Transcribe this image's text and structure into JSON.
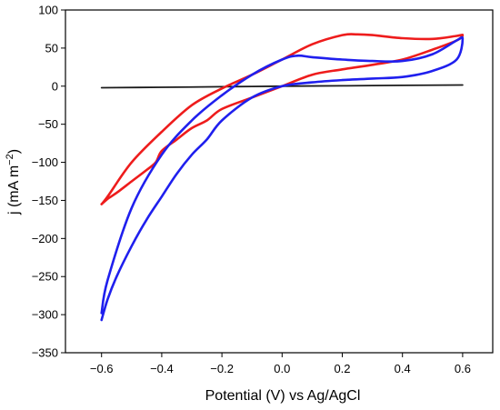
{
  "chart_data": {
    "type": "line",
    "title": "",
    "xlabel": "Potential (V) vs Ag/AgCl",
    "ylabel_main": "j (mA m",
    "ylabel_sup": "−2",
    "ylabel_close": ")",
    "xlim": [
      -0.72,
      0.7
    ],
    "ylim": [
      -350,
      100
    ],
    "xticks": [
      -0.6,
      -0.4,
      -0.2,
      0.0,
      0.2,
      0.4,
      0.6
    ],
    "xtick_labels": [
      "−0.6",
      "−0.4",
      "−0.2",
      "0.0",
      "0.2",
      "0.4",
      "0.6"
    ],
    "yticks": [
      -350,
      -300,
      -250,
      -200,
      -150,
      -100,
      -50,
      0,
      50,
      100
    ],
    "ytick_labels": [
      "−350",
      "−300",
      "−250",
      "−200",
      "−150",
      "−100",
      "−50",
      "0",
      "50",
      "100"
    ],
    "grid": false,
    "legend": "none",
    "series": [
      {
        "color": "#1a1a1a",
        "x": [
          -0.6,
          -0.4,
          -0.2,
          0.0,
          0.2,
          0.4,
          0.6
        ],
        "y": [
          -2,
          -1.5,
          -0.8,
          0,
          0.5,
          1,
          1.5
        ]
      },
      {
        "color": "#ee1c1c",
        "x": [
          -0.6,
          -0.58,
          -0.55,
          -0.5,
          -0.45,
          -0.42,
          -0.4,
          -0.35,
          -0.3,
          -0.25,
          -0.2,
          -0.1,
          0.0,
          0.1,
          0.2,
          0.3,
          0.4,
          0.5,
          0.58,
          0.6,
          0.58,
          0.5,
          0.4,
          0.3,
          0.25,
          0.2,
          0.1,
          0.0,
          -0.1,
          -0.2,
          -0.3,
          -0.4,
          -0.5,
          -0.58,
          -0.6
        ],
        "y": [
          -155,
          -148,
          -140,
          -125,
          -110,
          -100,
          -85,
          -70,
          -55,
          -45,
          -30,
          -15,
          0,
          15,
          22,
          28,
          35,
          48,
          60,
          67,
          66,
          62,
          63,
          67,
          68,
          67,
          55,
          35,
          15,
          -3,
          -25,
          -60,
          -100,
          -145,
          -155
        ]
      },
      {
        "color": "#1f1fee",
        "x": [
          -0.6,
          -0.58,
          -0.55,
          -0.5,
          -0.45,
          -0.4,
          -0.35,
          -0.3,
          -0.25,
          -0.2,
          -0.1,
          0.0,
          0.1,
          0.2,
          0.3,
          0.4,
          0.5,
          0.58,
          0.6,
          0.58,
          0.5,
          0.4,
          0.3,
          0.2,
          0.1,
          0.05,
          0.0,
          -0.1,
          -0.2,
          -0.3,
          -0.4,
          -0.5,
          -0.58,
          -0.6
        ],
        "y": [
          -307,
          -280,
          -250,
          -210,
          -175,
          -145,
          -115,
          -90,
          -70,
          -45,
          -15,
          0,
          5,
          8,
          10,
          12,
          20,
          35,
          62,
          60,
          42,
          33,
          33,
          35,
          38,
          40,
          35,
          15,
          -12,
          -45,
          -90,
          -160,
          -255,
          -298
        ]
      }
    ]
  }
}
